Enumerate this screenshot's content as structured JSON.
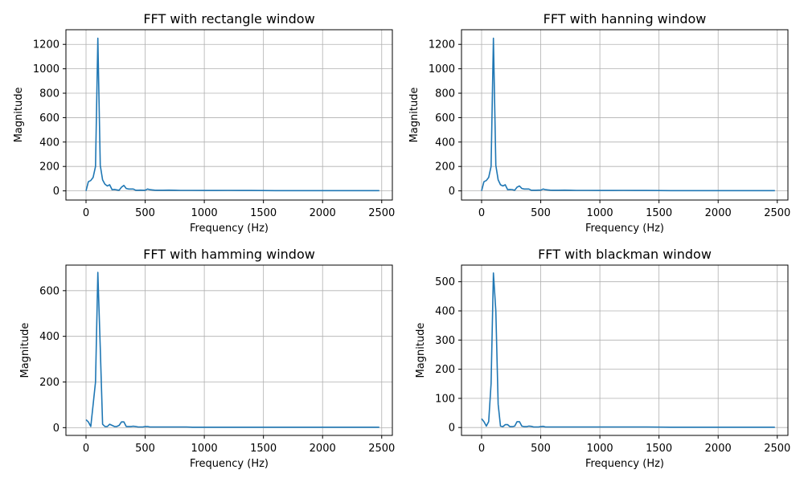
{
  "chart_data": [
    {
      "type": "line",
      "title": "FFT with rectangle window",
      "xlabel": "Frequency (Hz)",
      "ylabel": "Magnitude",
      "xlim": [
        -170,
        2590
      ],
      "ylim": [
        -75,
        1320
      ],
      "xticks": [
        0,
        500,
        1000,
        1500,
        2000,
        2500
      ],
      "yticks": [
        0,
        200,
        400,
        600,
        800,
        1000,
        1200
      ],
      "grid": true,
      "series": [
        {
          "color": "#1f77b4",
          "x": [
            0,
            20,
            40,
            60,
            80,
            100,
            120,
            140,
            160,
            180,
            200,
            220,
            240,
            260,
            280,
            300,
            320,
            340,
            360,
            380,
            400,
            420,
            440,
            460,
            480,
            500,
            520,
            540,
            560,
            580,
            600,
            650,
            700,
            750,
            800,
            850,
            900,
            1000,
            1100,
            1200,
            1300,
            1400,
            1600,
            1800,
            2000,
            2200,
            2400,
            2480
          ],
          "y": [
            0,
            75,
            85,
            110,
            200,
            1250,
            210,
            90,
            55,
            40,
            50,
            10,
            12,
            8,
            5,
            30,
            45,
            20,
            15,
            15,
            15,
            5,
            5,
            6,
            5,
            5,
            15,
            10,
            8,
            6,
            5,
            5,
            6,
            5,
            4,
            4,
            4,
            3,
            3,
            4,
            3,
            3,
            2,
            2,
            2,
            2,
            2,
            2
          ]
        }
      ]
    },
    {
      "type": "line",
      "title": "FFT with hanning window",
      "xlabel": "Frequency (Hz)",
      "ylabel": "Magnitude",
      "xlim": [
        -170,
        2590
      ],
      "ylim": [
        -75,
        1320
      ],
      "xticks": [
        0,
        500,
        1000,
        1500,
        2000,
        2500
      ],
      "yticks": [
        0,
        200,
        400,
        600,
        800,
        1000,
        1200
      ],
      "grid": true,
      "series": [
        {
          "color": "#1f77b4",
          "x": [
            0,
            20,
            40,
            60,
            80,
            100,
            120,
            140,
            160,
            180,
            200,
            220,
            240,
            260,
            280,
            300,
            320,
            340,
            360,
            380,
            400,
            420,
            440,
            460,
            480,
            500,
            520,
            540,
            560,
            580,
            600,
            650,
            700,
            750,
            800,
            850,
            900,
            1000,
            1100,
            1200,
            1300,
            1400,
            1600,
            1800,
            2000,
            2200,
            2400,
            2480
          ],
          "y": [
            0,
            75,
            85,
            110,
            200,
            1250,
            210,
            90,
            50,
            40,
            50,
            10,
            12,
            10,
            5,
            30,
            40,
            20,
            15,
            15,
            15,
            5,
            5,
            5,
            6,
            6,
            15,
            10,
            8,
            6,
            5,
            5,
            6,
            5,
            4,
            4,
            4,
            3,
            3,
            4,
            3,
            3,
            2,
            2,
            2,
            2,
            2,
            2
          ]
        }
      ]
    },
    {
      "type": "line",
      "title": "FFT with hamming window",
      "xlabel": "Frequency (Hz)",
      "ylabel": "Magnitude",
      "xlim": [
        -170,
        2590
      ],
      "ylim": [
        -34,
        712
      ],
      "xticks": [
        0,
        500,
        1000,
        1500,
        2000,
        2500
      ],
      "yticks": [
        0,
        200,
        400,
        600
      ],
      "grid": true,
      "series": [
        {
          "color": "#1f77b4",
          "x": [
            0,
            20,
            40,
            60,
            80,
            100,
            120,
            140,
            160,
            180,
            200,
            220,
            240,
            260,
            280,
            300,
            320,
            340,
            360,
            380,
            400,
            420,
            440,
            460,
            480,
            500,
            520,
            540,
            560,
            580,
            600,
            650,
            700,
            750,
            800,
            850,
            900,
            1000,
            1100,
            1200,
            1300,
            1400,
            1600,
            1800,
            2000,
            2200,
            2400,
            2480
          ],
          "y": [
            35,
            25,
            5,
            100,
            200,
            680,
            350,
            15,
            5,
            5,
            15,
            10,
            5,
            5,
            10,
            25,
            25,
            5,
            5,
            5,
            6,
            5,
            3,
            3,
            3,
            5,
            5,
            3,
            3,
            3,
            3,
            3,
            3,
            3,
            3,
            3,
            2,
            2,
            2,
            2,
            2,
            2,
            2,
            2,
            2,
            2,
            2,
            2
          ]
        }
      ]
    },
    {
      "type": "line",
      "title": "FFT with blackman window",
      "xlabel": "Frequency (Hz)",
      "ylabel": "Magnitude",
      "xlim": [
        -170,
        2590
      ],
      "ylim": [
        -27,
        557
      ],
      "xticks": [
        0,
        500,
        1000,
        1500,
        2000,
        2500
      ],
      "yticks": [
        0,
        100,
        200,
        300,
        400,
        500
      ],
      "grid": true,
      "series": [
        {
          "color": "#1f77b4",
          "x": [
            0,
            20,
            40,
            60,
            80,
            100,
            120,
            140,
            160,
            180,
            200,
            220,
            240,
            260,
            280,
            300,
            320,
            340,
            360,
            380,
            400,
            420,
            440,
            460,
            480,
            500,
            520,
            540,
            560,
            580,
            600,
            650,
            700,
            750,
            800,
            850,
            900,
            1000,
            1100,
            1200,
            1300,
            1400,
            1600,
            1800,
            2000,
            2200,
            2400,
            2480
          ],
          "y": [
            30,
            20,
            5,
            20,
            150,
            530,
            400,
            80,
            5,
            3,
            10,
            10,
            3,
            3,
            5,
            20,
            20,
            5,
            3,
            3,
            5,
            4,
            2,
            2,
            2,
            3,
            4,
            2,
            2,
            2,
            2,
            2,
            2,
            2,
            2,
            2,
            2,
            2,
            2,
            2,
            2,
            2,
            1,
            1,
            1,
            1,
            1,
            1
          ]
        }
      ]
    }
  ]
}
